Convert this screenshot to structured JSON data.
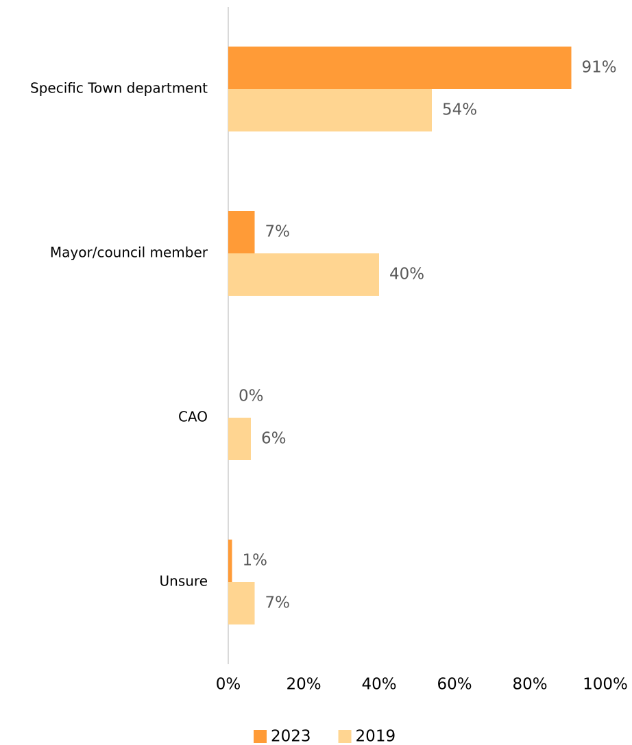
{
  "chart_data": {
    "type": "hbar",
    "categories": [
      "Specific Town department",
      "Mayor/council member",
      "CAO",
      "Unsure"
    ],
    "series": [
      {
        "name": "2023",
        "color": "#ff9b37",
        "values": [
          91,
          7,
          0,
          1
        ],
        "value_labels": [
          "91%",
          "7%",
          "0%",
          "1%"
        ]
      },
      {
        "name": "2019",
        "color": "#ffd591",
        "values": [
          54,
          40,
          6,
          7
        ],
        "value_labels": [
          "54%",
          "40%",
          "6%",
          "7%"
        ]
      }
    ],
    "xlim": [
      0,
      100
    ],
    "xticks": [
      {
        "value": 0,
        "label": "0%"
      },
      {
        "value": 20,
        "label": "20%"
      },
      {
        "value": 40,
        "label": "40%"
      },
      {
        "value": 60,
        "label": "60%"
      },
      {
        "value": 80,
        "label": "80%"
      },
      {
        "value": 100,
        "label": "100%"
      }
    ],
    "grid": false,
    "legend": "bottom"
  }
}
